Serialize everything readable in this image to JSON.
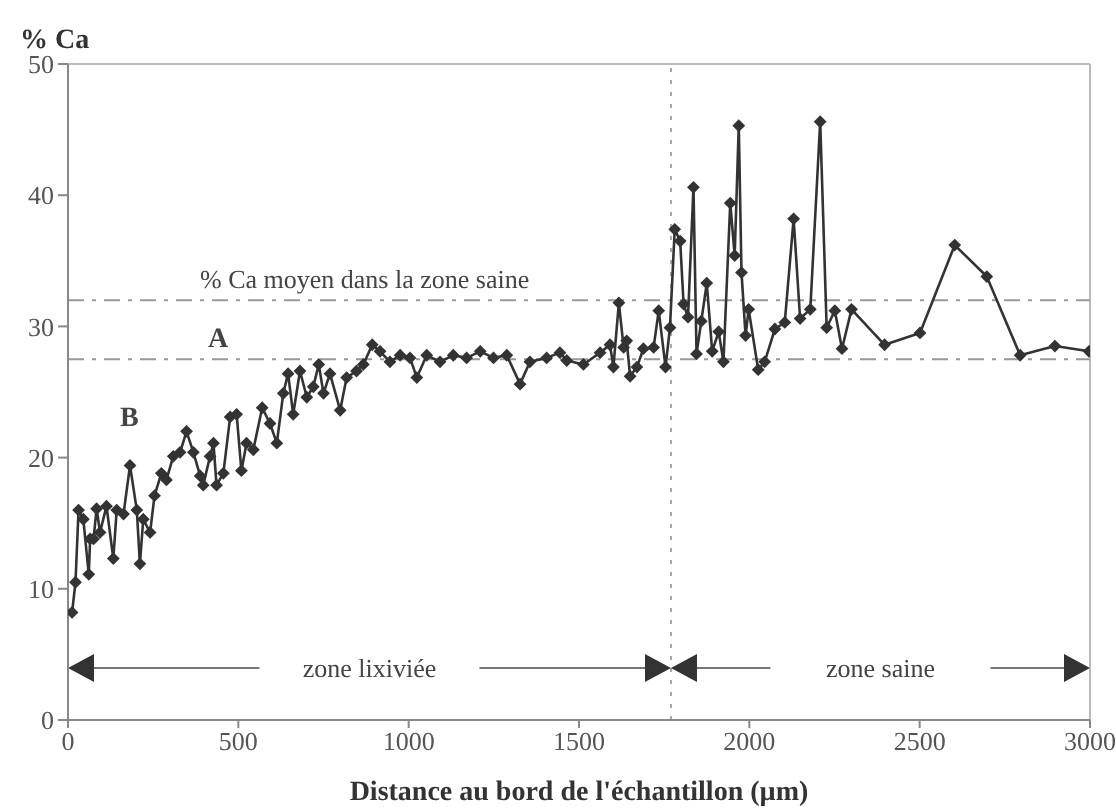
{
  "chart_data": {
    "type": "line",
    "xlabel": "Distance au bord de l'échantillon (µm)",
    "ylabel": "% Ca",
    "marker": "diamond",
    "line_style": "solid",
    "xlim": [
      0,
      3000
    ],
    "xticks": [
      0,
      500,
      1000,
      1500,
      2000,
      2500,
      3000
    ],
    "ylim": [
      0,
      50
    ],
    "yticks": [
      0,
      10,
      20,
      30,
      40,
      50
    ],
    "series": [
      {
        "color": "#333333",
        "x": [
          12,
          22,
          31,
          45,
          61,
          65,
          75,
          84,
          94,
          113,
          133,
          143,
          163,
          182,
          202,
          211,
          221,
          241,
          254,
          274,
          289,
          309,
          329,
          348,
          368,
          388,
          397,
          417,
          427,
          436,
          456,
          476,
          495,
          509,
          524,
          544,
          570,
          593,
          613,
          632,
          646,
          661,
          681,
          701,
          720,
          736,
          750,
          769,
          799,
          818,
          847,
          867,
          893,
          916,
          945,
          975,
          1004,
          1024,
          1053,
          1092,
          1131,
          1170,
          1210,
          1249,
          1288,
          1327,
          1356,
          1405,
          1444,
          1464,
          1513,
          1562,
          1591,
          1601,
          1617,
          1631,
          1640,
          1650,
          1670,
          1689,
          1719,
          1734,
          1754,
          1767,
          1781,
          1797,
          1807,
          1820,
          1836,
          1845,
          1859,
          1875,
          1891,
          1910,
          1924,
          1944,
          1957,
          1969,
          1977,
          1989,
          1998,
          2026,
          2045,
          2075,
          2104,
          2130,
          2149,
          2179,
          2208,
          2227,
          2251,
          2272,
          2300,
          2397,
          2501,
          2603,
          2697,
          2795,
          2897,
          2997
        ],
        "values": [
          8.2,
          10.5,
          16.0,
          15.3,
          11.1,
          13.8,
          13.8,
          16.1,
          14.3,
          16.3,
          12.3,
          16.0,
          15.7,
          19.4,
          16.0,
          11.9,
          15.3,
          14.3,
          17.1,
          18.8,
          18.3,
          20.1,
          20.4,
          22.0,
          20.4,
          18.6,
          17.9,
          20.1,
          21.1,
          17.9,
          18.8,
          23.1,
          23.3,
          19.0,
          21.1,
          20.6,
          23.8,
          22.6,
          21.1,
          24.9,
          26.4,
          23.3,
          26.6,
          24.6,
          25.4,
          27.1,
          24.9,
          26.4,
          23.6,
          26.1,
          26.6,
          27.1,
          28.6,
          28.1,
          27.3,
          27.8,
          27.6,
          26.1,
          27.8,
          27.3,
          27.8,
          27.6,
          28.1,
          27.6,
          27.8,
          25.6,
          27.3,
          27.6,
          28.0,
          27.4,
          27.1,
          28.0,
          28.6,
          26.9,
          31.8,
          28.4,
          28.9,
          26.2,
          26.9,
          28.3,
          28.4,
          31.2,
          26.9,
          29.9,
          37.4,
          36.5,
          31.7,
          30.7,
          40.6,
          27.9,
          30.4,
          33.3,
          28.1,
          29.6,
          27.3,
          39.4,
          35.4,
          45.3,
          34.1,
          29.3,
          31.3,
          26.7,
          27.3,
          29.8,
          30.3,
          38.2,
          30.6,
          31.3,
          45.6,
          29.9,
          31.2,
          28.3,
          31.3,
          28.6,
          29.5,
          36.2,
          33.8,
          27.8,
          28.5,
          28.1
        ]
      }
    ],
    "ref_lines": [
      {
        "axis": "y",
        "value": 32,
        "label": "% Ca moyen dans la  zone saine",
        "color": "#999999",
        "line_style": "dashed"
      },
      {
        "axis": "y",
        "value": 27.5,
        "label": "A",
        "color": "#999999",
        "line_style": "dashed"
      },
      {
        "axis": "x",
        "value": 1770,
        "color": "#aaaaaa",
        "line_style": "dotted"
      }
    ],
    "annotations": [
      "B",
      "zone lixiviée",
      "zone saine"
    ]
  }
}
